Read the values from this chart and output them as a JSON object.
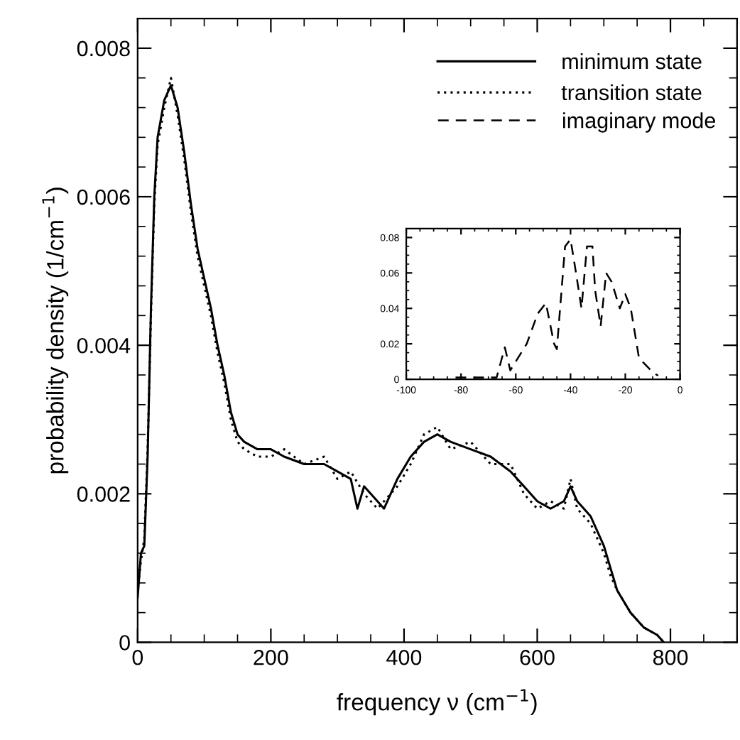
{
  "chart_data": [
    {
      "type": "line",
      "xlabel": "frequency ν (cm$^{−1}$)",
      "ylabel": "probability density (1/cm$^{−1}$)",
      "xlim": [
        0,
        900
      ],
      "ylim": [
        0,
        0.0084
      ],
      "xticks": [
        0,
        200,
        400,
        600,
        800
      ],
      "yticks": [
        0,
        0.002,
        0.004,
        0.006,
        0.008
      ],
      "legend": "top right",
      "grid": false,
      "series": [
        {
          "name": "minimum state",
          "color": "#000000",
          "line_style": "solid",
          "x": [
            0,
            5,
            10,
            15,
            20,
            25,
            30,
            40,
            50,
            60,
            70,
            80,
            90,
            100,
            110,
            120,
            130,
            140,
            150,
            160,
            180,
            200,
            220,
            250,
            280,
            300,
            320,
            330,
            340,
            360,
            370,
            390,
            410,
            430,
            450,
            470,
            500,
            530,
            560,
            580,
            600,
            620,
            640,
            650,
            660,
            680,
            700,
            710,
            720,
            740,
            760,
            780,
            790
          ],
          "values": [
            0.0006,
            0.0012,
            0.0013,
            0.0025,
            0.0045,
            0.006,
            0.0068,
            0.0073,
            0.0075,
            0.0072,
            0.0066,
            0.0059,
            0.0053,
            0.0049,
            0.0045,
            0.004,
            0.0036,
            0.0031,
            0.0028,
            0.0027,
            0.0026,
            0.0026,
            0.0025,
            0.0024,
            0.0024,
            0.0023,
            0.0022,
            0.0018,
            0.0021,
            0.0019,
            0.0018,
            0.0022,
            0.0025,
            0.0027,
            0.0028,
            0.0027,
            0.0026,
            0.0025,
            0.0023,
            0.0021,
            0.0019,
            0.0018,
            0.0019,
            0.0021,
            0.0019,
            0.0017,
            0.0013,
            0.001,
            0.0007,
            0.0004,
            0.0002,
            0.0001,
            0
          ]
        },
        {
          "name": "transition state",
          "color": "#000000",
          "line_style": "dotted",
          "x": [
            0,
            5,
            10,
            15,
            20,
            25,
            30,
            40,
            50,
            60,
            70,
            80,
            90,
            100,
            110,
            120,
            130,
            140,
            150,
            160,
            180,
            200,
            220,
            250,
            280,
            300,
            320,
            340,
            360,
            370,
            390,
            410,
            430,
            450,
            470,
            500,
            530,
            560,
            580,
            600,
            620,
            640,
            650,
            660,
            680,
            700,
            710,
            720,
            740,
            760,
            780,
            790
          ],
          "values": [
            0.0007,
            0.0011,
            0.0014,
            0.0026,
            0.0044,
            0.0059,
            0.0067,
            0.0072,
            0.0076,
            0.0071,
            0.0065,
            0.0058,
            0.0052,
            0.0048,
            0.0044,
            0.0039,
            0.0035,
            0.003,
            0.0027,
            0.0026,
            0.0025,
            0.0025,
            0.0026,
            0.0024,
            0.0025,
            0.0022,
            0.0023,
            0.002,
            0.0018,
            0.0019,
            0.0021,
            0.0024,
            0.0028,
            0.0029,
            0.0026,
            0.0027,
            0.0024,
            0.0024,
            0.002,
            0.0018,
            0.0019,
            0.0018,
            0.0022,
            0.0018,
            0.0016,
            0.0012,
            0.0009,
            0.0007,
            0.0004,
            0.0002,
            0.0001,
            0
          ]
        }
      ]
    },
    {
      "type": "line",
      "xlim": [
        -100,
        0
      ],
      "ylim": [
        0,
        0.085
      ],
      "xticks": [
        -100,
        -80,
        -60,
        -40,
        -20,
        0
      ],
      "yticks": [
        0,
        0.02,
        0.04,
        0.06,
        0.08
      ],
      "grid": false,
      "series": [
        {
          "name": "imaginary mode",
          "color": "#000000",
          "line_style": "dashed",
          "x": [
            -82,
            -67,
            -64,
            -62,
            -56,
            -52,
            -49,
            -46,
            -45,
            -42,
            -40,
            -38,
            -36,
            -34,
            -32,
            -31,
            -29,
            -27,
            -25,
            -22,
            -20,
            -18,
            -15,
            -10,
            -8
          ],
          "values": [
            0.001,
            0.001,
            0.018,
            0.005,
            0.02,
            0.037,
            0.043,
            0.02,
            0.017,
            0.075,
            0.079,
            0.06,
            0.04,
            0.075,
            0.075,
            0.05,
            0.03,
            0.06,
            0.055,
            0.04,
            0.048,
            0.04,
            0.012,
            0.004,
            0.002
          ]
        }
      ]
    }
  ]
}
